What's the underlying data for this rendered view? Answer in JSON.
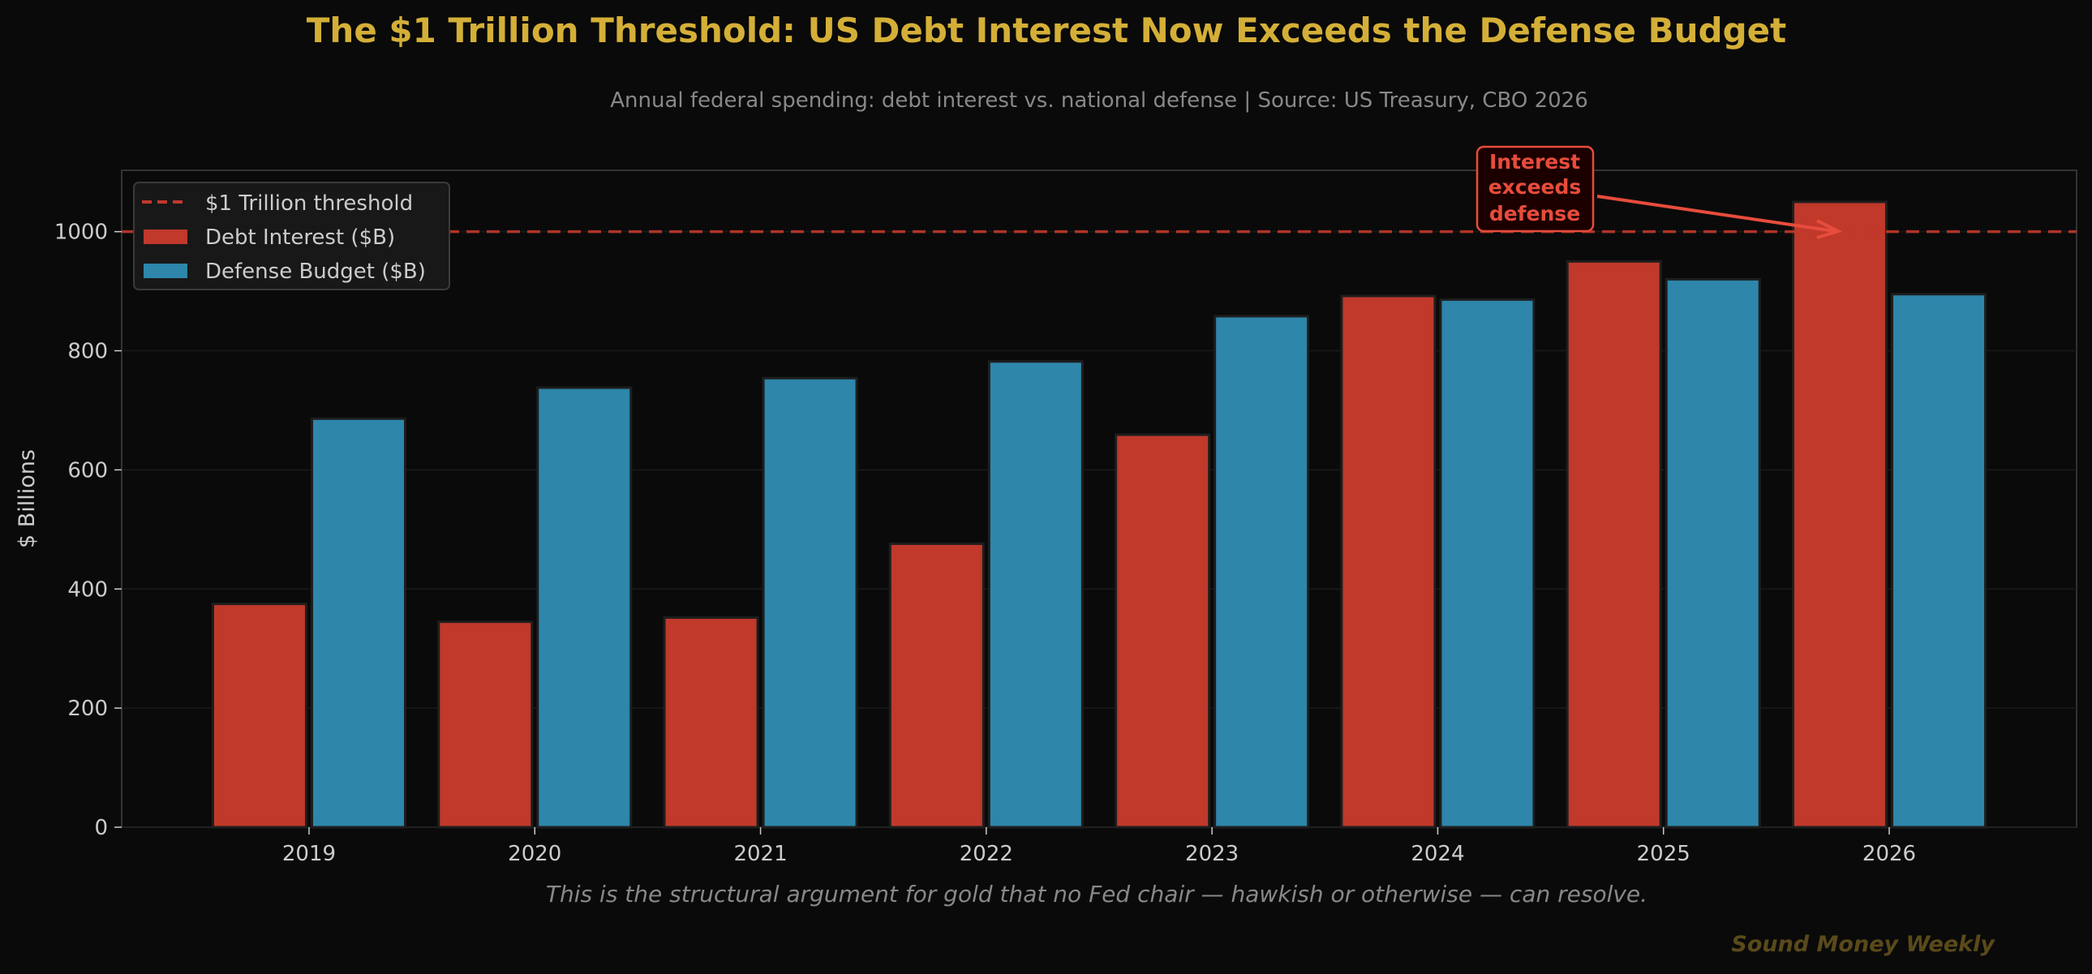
{
  "chart_data": {
    "type": "bar",
    "title": "The $1 Trillion Threshold: US Debt Interest Now Exceeds the Defense Budget",
    "subtitle": "Annual federal spending: debt interest vs. national defense  |  Source: US Treasury, CBO 2026",
    "ylabel": "$ Billions",
    "xlabel": "",
    "categories": [
      "2019",
      "2020",
      "2021",
      "2022",
      "2023",
      "2024",
      "2025",
      "2026"
    ],
    "series": [
      {
        "name": "Debt Interest ($B)",
        "color": "#c0392b",
        "values": [
          375,
          345,
          352,
          476,
          659,
          892,
          950,
          1050
        ]
      },
      {
        "name": "Defense Budget ($B)",
        "color": "#2e86ab",
        "values": [
          686,
          738,
          754,
          782,
          858,
          886,
          920,
          895
        ]
      }
    ],
    "threshold": {
      "name": "$1 Trillion threshold",
      "value": 1000,
      "color": "#c0392b",
      "style": "dashed"
    },
    "ylim": [
      0,
      1103
    ],
    "yticks": [
      0,
      200,
      400,
      600,
      800,
      1000
    ],
    "grid": true,
    "legend": "top-left",
    "annotation": {
      "text": [
        "Interest",
        "exceeds",
        "defense"
      ],
      "target_category": "2026",
      "target_value": 1000,
      "color": "#e74c3c"
    },
    "footer": "This is the structural argument for gold that no Fed chair — hawkish or otherwise — can resolve.",
    "watermark": "Sound Money Weekly",
    "colors": {
      "background": "#0a0a0a",
      "title": "#d4af37",
      "text": "#cccccc",
      "muted": "#888888",
      "watermark": "#5a4a1a"
    }
  }
}
